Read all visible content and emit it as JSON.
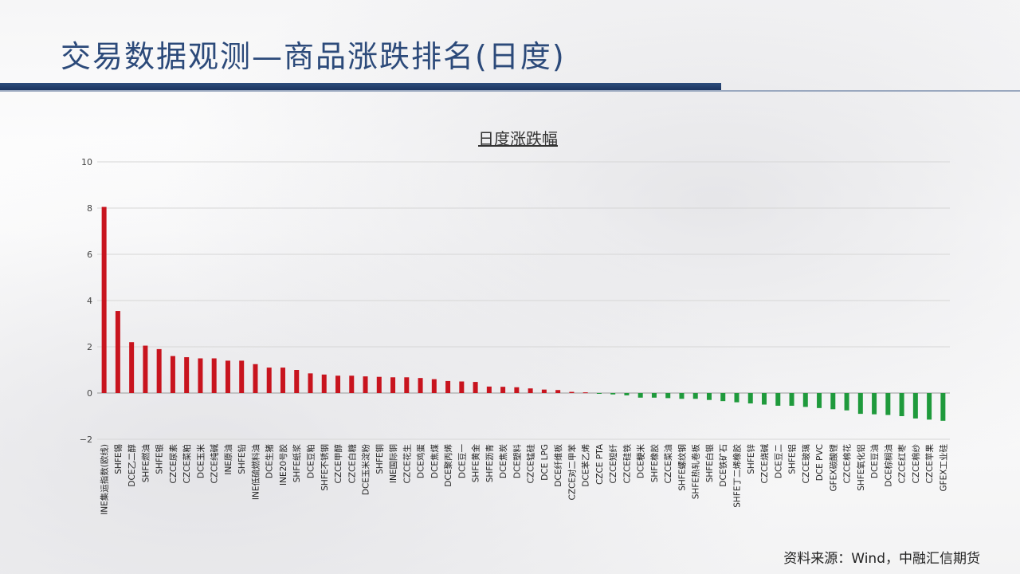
{
  "slide": {
    "title": "交易数据观测—商品涨跌排名(日度)",
    "source": "资料来源：Wind，中融汇信期货"
  },
  "colors": {
    "title": "#2c4a7a",
    "band": "#1c3560",
    "up": "#c8141e",
    "down": "#1f9a3c"
  },
  "chart_data": {
    "type": "bar",
    "title": "日度涨跌幅",
    "xlabel": "",
    "ylabel": "",
    "ylim": [
      -2,
      10
    ],
    "yticks": [
      -2,
      0,
      2,
      4,
      6,
      8,
      10
    ],
    "grid": true,
    "categories": [
      "INE集运指数(欧线)",
      "SHFE锡",
      "DCE乙二醇",
      "SHFE燃油",
      "SHFE银",
      "CZCE尿素",
      "CZCE菜粕",
      "DCE玉米",
      "CZCE纯碱",
      "INE原油",
      "SHFE铅",
      "INE低硫燃料油",
      "DCE生猪",
      "INE20号胶",
      "SHFE纸浆",
      "DCE豆粕",
      "SHFE不锈钢",
      "CZCE甲醇",
      "CZCE白糖",
      "DCE玉米淀粉",
      "SHFE铜",
      "INE国际铜",
      "CZCE花生",
      "DCE鸡蛋",
      "DCE焦煤",
      "DCE聚丙烯",
      "DCE豆一",
      "SHFE黄金",
      "SHFE沥青",
      "DCE焦炭",
      "DCE塑料",
      "CZCE锰硅",
      "DCE LPG",
      "DCE纤维板",
      "CZCE对二甲苯",
      "DCE苯乙烯",
      "CZCE PTA",
      "CZCE短纤",
      "CZCE硅铁",
      "DCE粳米",
      "SHFE橡胶",
      "CZCE菜油",
      "SHFE螺纹钢",
      "SHFE热轧卷板",
      "SHFE白银",
      "DCE铁矿石",
      "SHFE丁二烯橡胶",
      "SHFE锌",
      "CZCE烧碱",
      "DCE豆二",
      "SHFE铝",
      "CZCE玻璃",
      "DCE PVC",
      "GFEX碳酸锂",
      "CZCE棉花",
      "SHFE氧化铝",
      "DCE豆油",
      "DCE棕榈油",
      "CZCE红枣",
      "CZCE棉纱",
      "CZCE苹果",
      "GFEX工业硅"
    ],
    "values": [
      8.05,
      3.55,
      2.2,
      2.05,
      1.9,
      1.6,
      1.55,
      1.5,
      1.5,
      1.4,
      1.4,
      1.25,
      1.1,
      1.1,
      1.0,
      0.85,
      0.8,
      0.75,
      0.75,
      0.72,
      0.7,
      0.68,
      0.68,
      0.65,
      0.6,
      0.52,
      0.5,
      0.48,
      0.28,
      0.27,
      0.25,
      0.2,
      0.15,
      0.13,
      0.05,
      0.03,
      -0.02,
      -0.06,
      -0.1,
      -0.2,
      -0.2,
      -0.22,
      -0.25,
      -0.25,
      -0.3,
      -0.35,
      -0.4,
      -0.45,
      -0.5,
      -0.55,
      -0.55,
      -0.6,
      -0.65,
      -0.7,
      -0.75,
      -0.9,
      -0.92,
      -0.95,
      -1.0,
      -1.1,
      -1.15,
      -1.2
    ]
  }
}
